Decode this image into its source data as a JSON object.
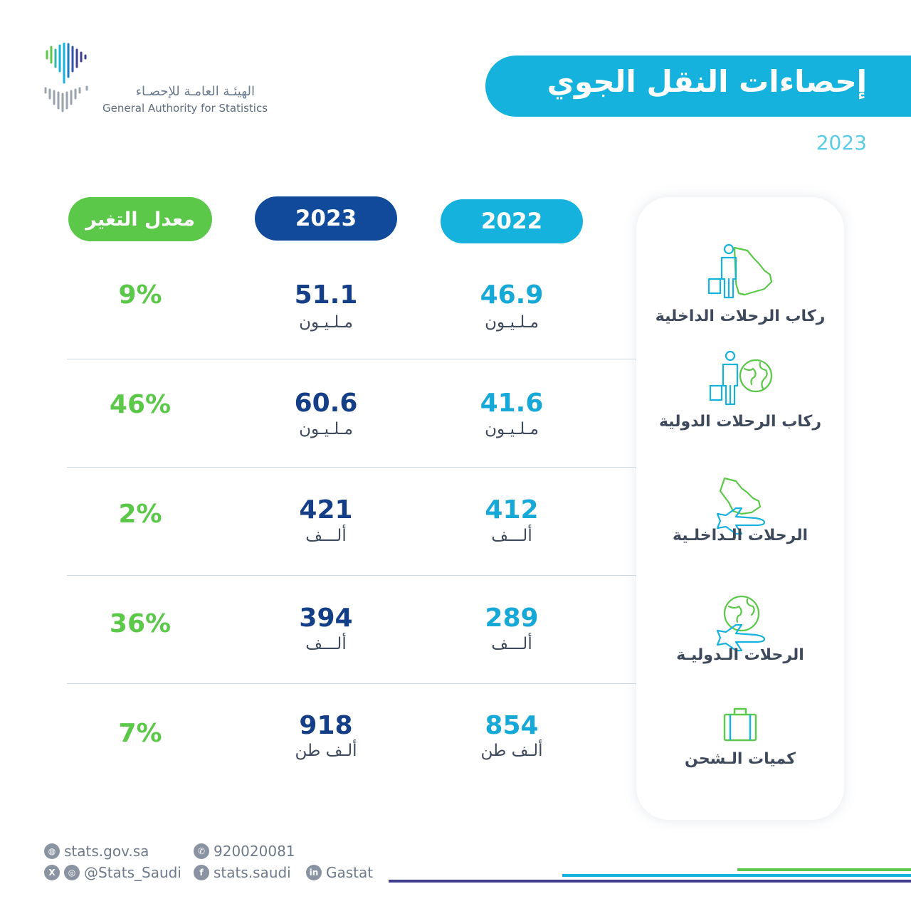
{
  "brand": {
    "name_ar": "الهيئـة العامـة للإحصـاء",
    "name_en": "General Authority for Statistics"
  },
  "title": "إحصاءات النقل الجوي",
  "year": "2023",
  "headers": {
    "y2022": "2022",
    "y2023": "2023",
    "change": "معدل التغير"
  },
  "categories": [
    {
      "label": "ركاب الرحلات الداخلية",
      "icon": "passenger-saudi-map-icon"
    },
    {
      "label": "ركاب الرحلات الدولية",
      "icon": "passenger-globe-icon"
    },
    {
      "label": "الرحلات الـداخلـية",
      "icon": "plane-saudi-map-icon"
    },
    {
      "label": "الرحلات الـدوليـة",
      "icon": "plane-globe-icon"
    },
    {
      "label": "كميات الـشحن",
      "icon": "cargo-suitcase-icon"
    }
  ],
  "rows": [
    {
      "v2022": "46.9",
      "u2022": "مـلـيـون",
      "v2023": "51.1",
      "u2023": "مـلـيـون",
      "change": "9%"
    },
    {
      "v2022": "41.6",
      "u2022": "مـلـيـون",
      "v2023": "60.6",
      "u2023": "مـلـيـون",
      "change": "46%"
    },
    {
      "v2022": "412",
      "u2022": "ألـــف",
      "v2023": "421",
      "u2023": "ألـــف",
      "change": "2%"
    },
    {
      "v2022": "289",
      "u2022": "ألـــف",
      "v2023": "394",
      "u2023": "ألـــف",
      "change": "36%"
    },
    {
      "v2022": "854",
      "u2022": "ألـف طن",
      "v2023": "918",
      "u2023": "ألـف طن",
      "change": "7%"
    }
  ],
  "footer": {
    "website": "stats.gov.sa",
    "phone": "920020081",
    "social": "@Stats_Saudi",
    "facebook": "stats.saudi",
    "linkedin": "Gastat"
  },
  "colors": {
    "cyan": "#16b2de",
    "navy": "#114a9a",
    "green": "#5cc84a",
    "purple": "#3f3d8e"
  }
}
